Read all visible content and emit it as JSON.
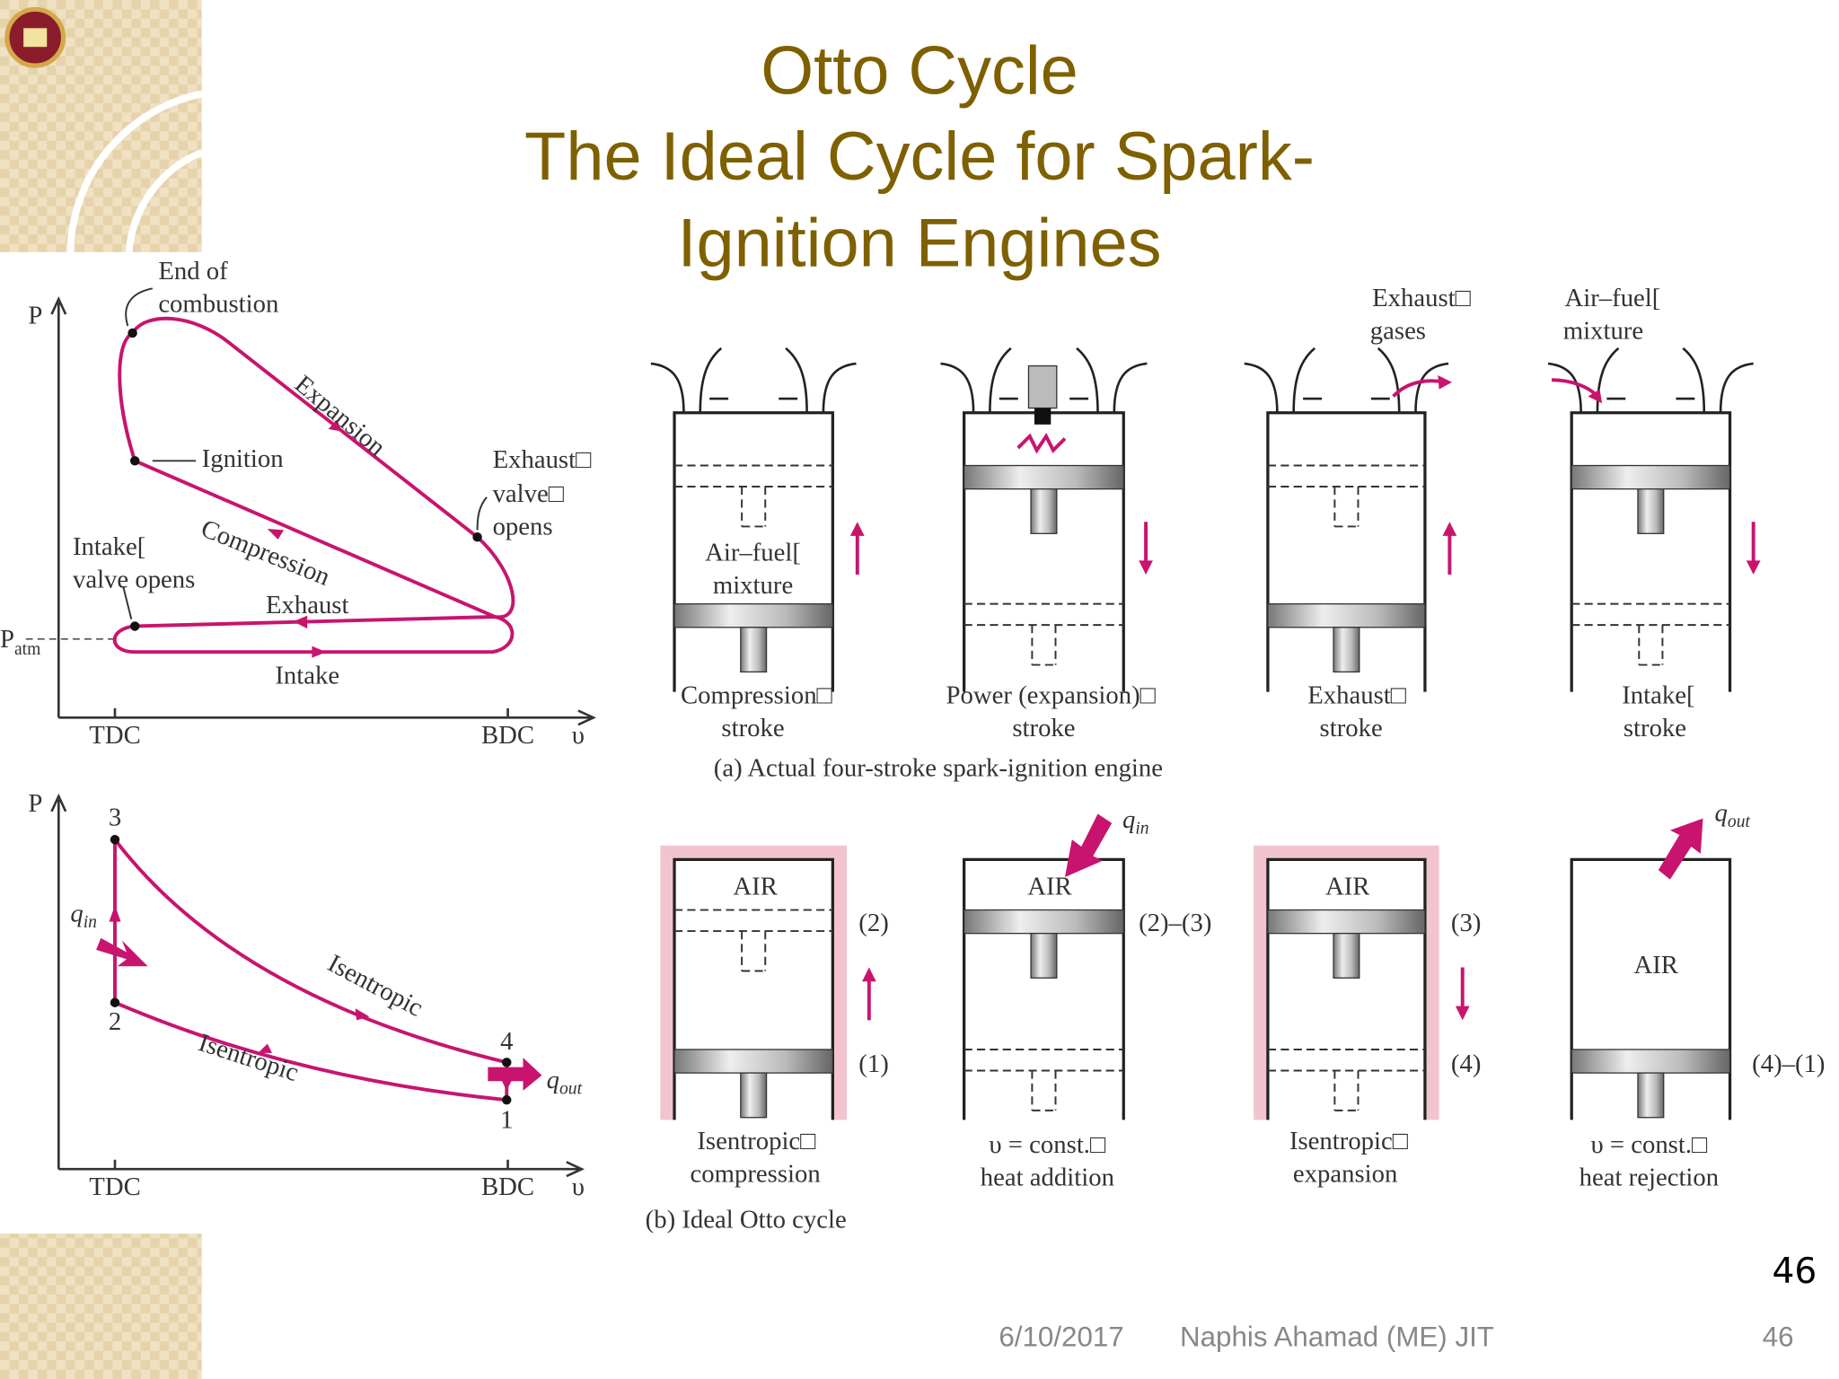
{
  "header": {
    "title": [
      "Otto Cycle",
      "The Ideal Cycle for Spark-",
      "Ignition Engines"
    ]
  },
  "actual_pv": {
    "axis_p": "P",
    "axis_v": "υ",
    "tdc": "TDC",
    "bdc": "BDC",
    "p_atm": {
      "main": "P",
      "sub": "atm"
    },
    "end_of_combustion": [
      "End of",
      "combustion"
    ],
    "ignition": "Ignition",
    "expansion": "Expansion",
    "exhaust_valve_opens": [
      "Exhaust□",
      "valve□",
      "opens"
    ],
    "compression": "Compression",
    "intake_valve_opens": [
      "Intake[",
      "valve opens"
    ],
    "exhaust": "Exhaust",
    "intake": "Intake"
  },
  "ideal_pv": {
    "axis_p": "P",
    "axis_v": "υ",
    "tdc": "TDC",
    "bdc": "BDC",
    "points": [
      "1",
      "2",
      "3",
      "4"
    ],
    "q_in": {
      "main": "q",
      "sub": "in"
    },
    "q_out": {
      "main": "q",
      "sub": "out"
    },
    "isentropic_expansion": "Isentropic",
    "isentropic_compression": "Isentropic"
  },
  "actual_engine": {
    "strokes": [
      {
        "caption": [
          "Compression□",
          "stroke"
        ]
      },
      {
        "caption": [
          "Power (expansion)□",
          "stroke"
        ]
      },
      {
        "caption": [
          "Exhaust□",
          "stroke"
        ]
      },
      {
        "caption": [
          "Intake[",
          "stroke"
        ]
      }
    ],
    "air_fuel_mixture": [
      "Air–fuel[",
      "mixture"
    ],
    "exhaust_gases": [
      "Exhaust□",
      "gases"
    ],
    "intake_mixture": [
      "Air–fuel[",
      "mixture"
    ],
    "caption": "(a) Actual four-stroke spark-ignition engine"
  },
  "ideal_engine": {
    "strokes": [
      {
        "air": "AIR",
        "caption": [
          "Isentropic□",
          "compression"
        ]
      },
      {
        "air": "AIR",
        "caption": [
          "υ = const.□",
          "heat addition"
        ]
      },
      {
        "air": "AIR",
        "caption": [
          "Isentropic□",
          "expansion"
        ]
      },
      {
        "air": "AIR",
        "caption": [
          "υ = const.□",
          "heat rejection"
        ]
      }
    ],
    "state_labels": [
      "(2)",
      "(1)",
      "(2)–(3)",
      "(3)",
      "(4)",
      "(4)–(1)"
    ],
    "q_in": {
      "main": "q",
      "sub": "in"
    },
    "q_out": {
      "main": "q",
      "sub": "out"
    },
    "caption": "(b) Ideal Otto cycle"
  },
  "slide_number": "46",
  "footer": {
    "date": "6/10/2017",
    "author": "Naphis Ahamad (ME) JIT",
    "page": "46"
  }
}
